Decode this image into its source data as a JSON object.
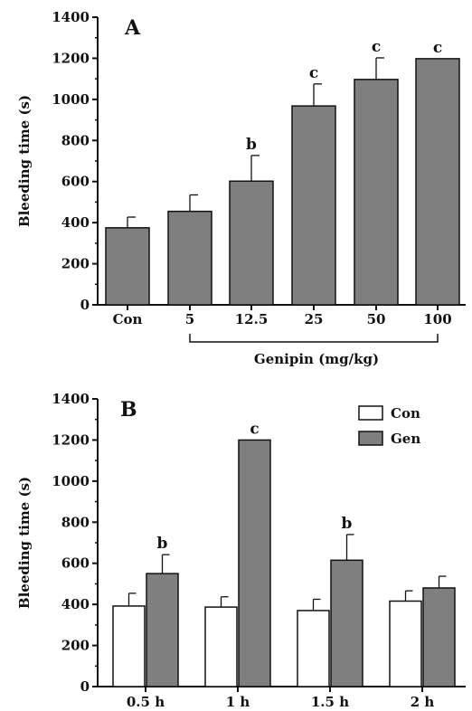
{
  "chart_data": [
    {
      "type": "bar",
      "panel_label": "A",
      "ylabel": "Bleeding time (s)",
      "ylim": [
        0,
        1400
      ],
      "yticks": [
        0,
        200,
        400,
        600,
        800,
        1000,
        1200,
        1400
      ],
      "categories": [
        "Con",
        "5",
        "12.5",
        "25",
        "50",
        "100"
      ],
      "values": [
        375,
        455,
        602,
        968,
        1097,
        1198
      ],
      "errors": [
        52,
        80,
        125,
        107,
        105,
        0
      ],
      "significance": [
        "",
        "",
        "b",
        "c",
        "c",
        "c"
      ],
      "bracket_label": "Genipin (mg/kg)",
      "colors": {
        "bar": "#7f7f7f",
        "axis": "#111111"
      }
    },
    {
      "type": "bar",
      "panel_label": "B",
      "ylabel": "Bleeding time (s)",
      "ylim": [
        0,
        1400
      ],
      "yticks": [
        0,
        200,
        400,
        600,
        800,
        1000,
        1200,
        1400
      ],
      "categories": [
        "0.5 h",
        "1 h",
        "1.5 h",
        "2 h"
      ],
      "legend_position": "top-right",
      "series": [
        {
          "name": "Con",
          "color": "#ffffff",
          "values": [
            392,
            387,
            370,
            416
          ],
          "errors": [
            62,
            50,
            55,
            50
          ],
          "significance": [
            "",
            "",
            "",
            ""
          ]
        },
        {
          "name": "Gen",
          "color": "#7f7f7f",
          "values": [
            550,
            1200,
            615,
            480
          ],
          "errors": [
            92,
            0,
            125,
            57
          ],
          "significance": [
            "b",
            "c",
            "b",
            ""
          ]
        }
      ]
    }
  ]
}
